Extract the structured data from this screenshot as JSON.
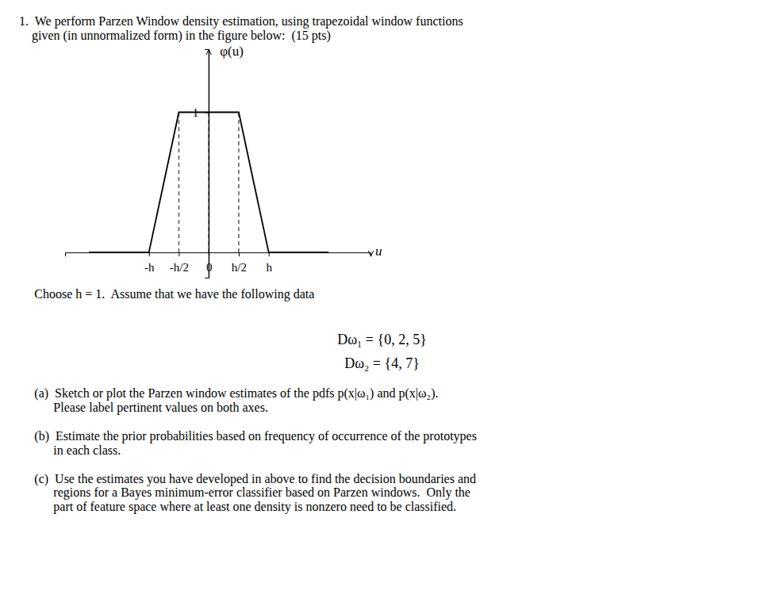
{
  "chart_data": {
    "type": "line",
    "x": [
      -2,
      -1,
      -0.5,
      0.5,
      1,
      2
    ],
    "values": [
      0,
      0,
      1,
      1,
      0,
      0
    ],
    "color": "#000000",
    "line_style": "solid",
    "dashed_lines_x": [
      -0.5,
      0.5,
      0
    ],
    "dashed_lines_y": [
      0,
      1
    ],
    "xlim": [
      -2.4,
      2.7
    ],
    "ylim": [
      -0.18,
      1.45
    ],
    "xticks": [
      {
        "value": -1,
        "label": "-h"
      },
      {
        "value": -0.5,
        "label": "-h/2"
      },
      0,
      {
        "value": 0.5,
        "label": "h/2"
      },
      {
        "value": 1,
        "label": "h"
      }
    ],
    "yticks": [
      1
    ],
    "x_label": "u",
    "y_label": "φ(u)",
    "grid": false,
    "annotations": [
      "1.  We perform Parzen Window density estimation, using trapezoidal window functions",
      "    given (in unnormalized form) in the figure below:  (15 pts)",
      "Choose h = 1.  Assume that we have the following data",
      "Dω₁ = {0, 2, 5}",
      "Dω₂ = {4, 7}",
      "(a)  Sketch or plot the Parzen window estimates of the pdfs p(x|ω₁) and p(x|ω₂).",
      "      Please label pertinent values on both axes.",
      "(b)  Estimate the prior probabilities based on frequency of occurrence of the prototypes",
      "      in each class.",
      "(c)  Use the estimates you have developed in above to find the decision boundaries and",
      "      regions for a Bayes minimum-error classifier based on Parzen windows.  Only the",
      "      part of feature space where at least one density is nonzero need to be classified."
    ]
  }
}
